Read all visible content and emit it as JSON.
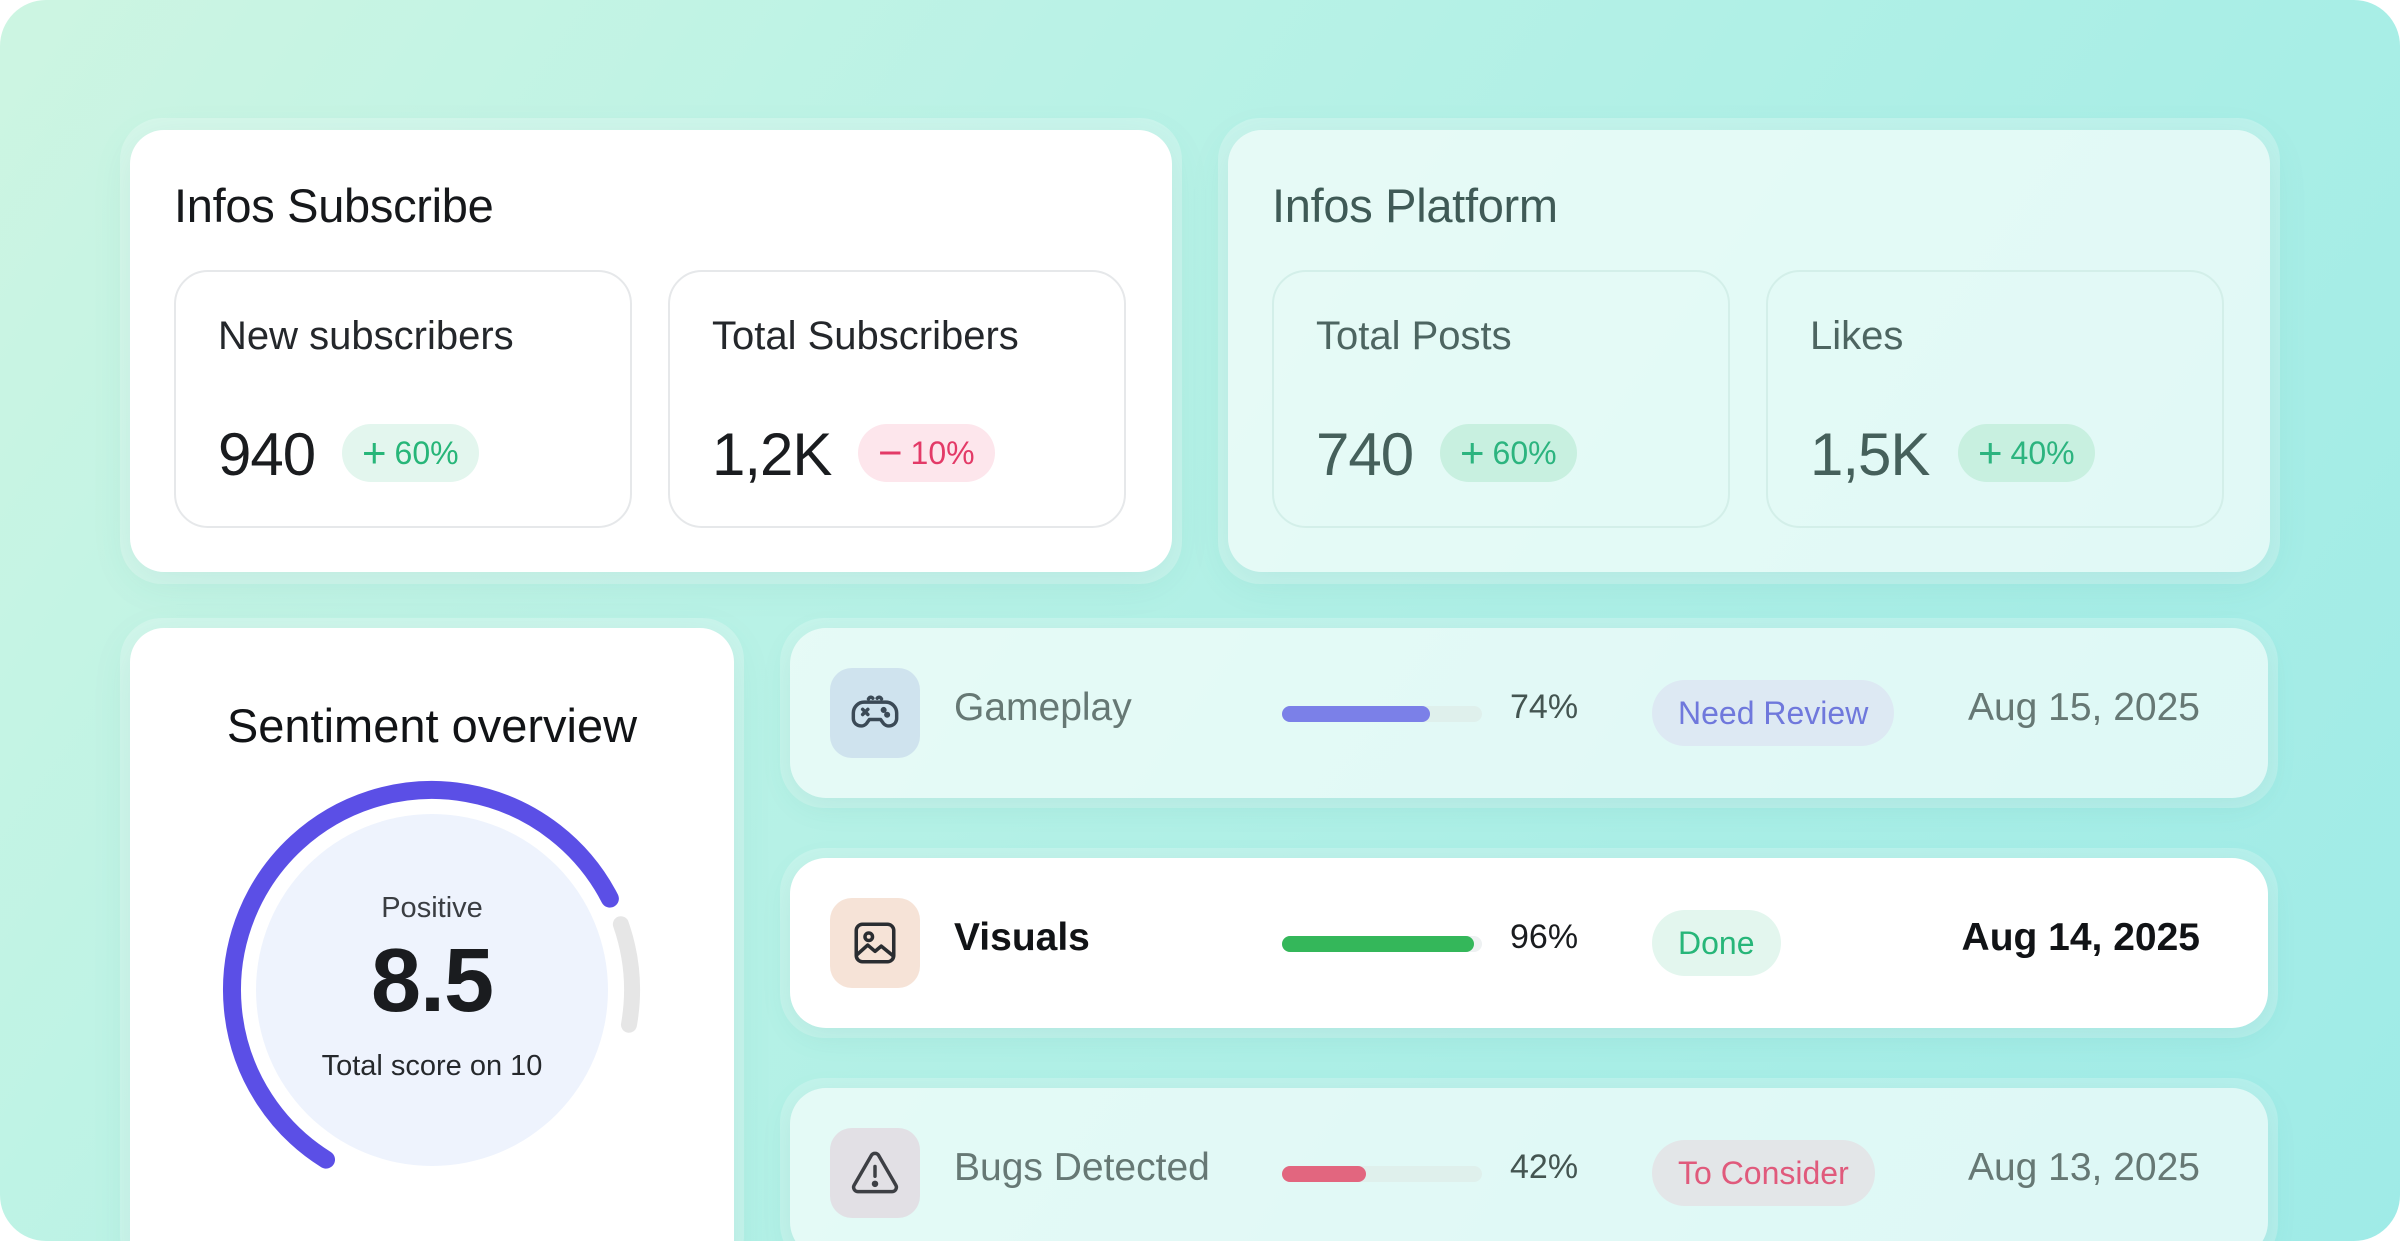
{
  "subscribe": {
    "title": "Infos Subscribe",
    "stats": [
      {
        "label": "New subscribers",
        "value": "940",
        "change": "60%",
        "sign": "+",
        "trend": "up"
      },
      {
        "label": "Total Subscribers",
        "value": "1,2K",
        "change": "10%",
        "sign": "−",
        "trend": "down"
      }
    ]
  },
  "platform": {
    "title": "Infos Platform",
    "stats": [
      {
        "label": "Total Posts",
        "value": "740",
        "change": "60%",
        "sign": "+",
        "trend": "up"
      },
      {
        "label": "Likes",
        "value": "1,5K",
        "change": "40%",
        "sign": "+",
        "trend": "up"
      }
    ]
  },
  "sentiment": {
    "title": "Sentiment overview",
    "label": "Positive",
    "score": "8.5",
    "caption": "Total score on 10",
    "score_value": 8.5,
    "score_max": 10,
    "accent": "#5b4fe6"
  },
  "items": [
    {
      "name": "Gameplay",
      "icon": "gamepad-icon",
      "progress": 74,
      "percent_label": "74%",
      "status": "Need Review",
      "date": "Aug 15, 2025",
      "bar_color": "#7b80e8",
      "status_bg": "#dde9f3",
      "status_color": "#6f78dc",
      "icon_bg": "#cfe3ee",
      "active": false
    },
    {
      "name": "Visuals",
      "icon": "image-icon",
      "progress": 96,
      "percent_label": "96%",
      "status": "Done",
      "date": "Aug 14, 2025",
      "bar_color": "#34b75a",
      "status_bg": "#e3f6ee",
      "status_color": "#27b679",
      "icon_bg": "#f6e3d7",
      "active": true
    },
    {
      "name": "Bugs Detected",
      "icon": "warning-icon",
      "progress": 42,
      "percent_label": "42%",
      "status": "To Consider",
      "date": "Aug 13, 2025",
      "bar_color": "#e2667f",
      "status_bg": "#e3e6e8",
      "status_color": "#e05a7c",
      "icon_bg": "#e2e0e5",
      "active": false
    }
  ]
}
